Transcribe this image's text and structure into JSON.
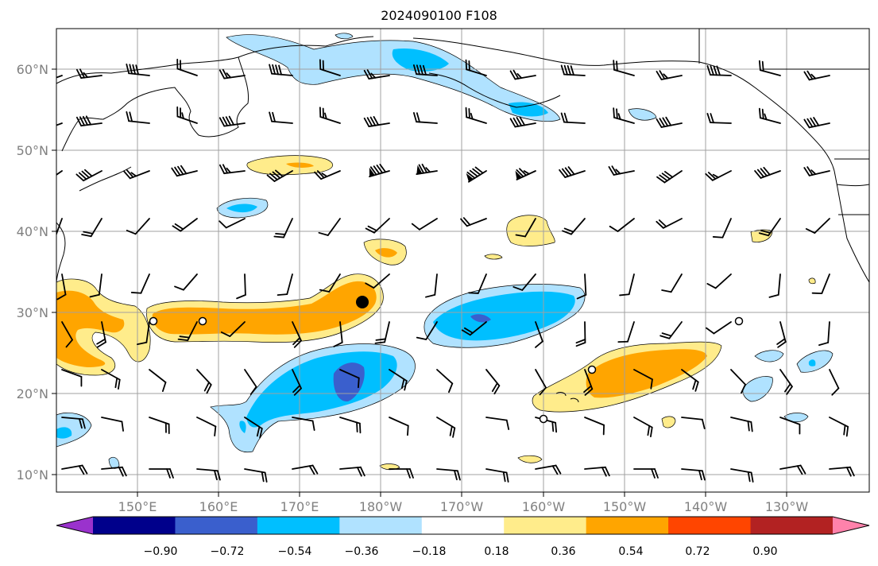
{
  "title": "2024090100 F108",
  "lat_labels": [
    "60°N",
    "50°N",
    "40°N",
    "30°N",
    "20°N",
    "10°N"
  ],
  "lon_labels": [
    "150°E",
    "160°E",
    "170°E",
    "180°W",
    "170°W",
    "160°W",
    "150°W",
    "140°W",
    "130°W"
  ],
  "colorbar": {
    "tick_labels": [
      "−0.90",
      "−0.72",
      "−0.54",
      "−0.36",
      "−0.18",
      "0.18",
      "0.36",
      "0.54",
      "0.72",
      "0.90"
    ],
    "colors": [
      "#9a32cd",
      "#00008b",
      "#3a5fcd",
      "#00bfff",
      "#b0e2ff",
      "#ffffff",
      "#ffec8b",
      "#ffa500",
      "#ff4500",
      "#b22222",
      "#ff82ab"
    ]
  },
  "colors": {
    "neg_light": "#b0e2ff",
    "neg_mid": "#00bfff",
    "neg_dark": "#3a5fcd",
    "pos_light": "#ffec8b",
    "pos_mid": "#ffa500",
    "grid": "#a0a0a0",
    "tick_text": "#808080"
  },
  "features": {
    "wind_barbs": "wind-barb-icons",
    "markers": "circle-marker-icons"
  }
}
